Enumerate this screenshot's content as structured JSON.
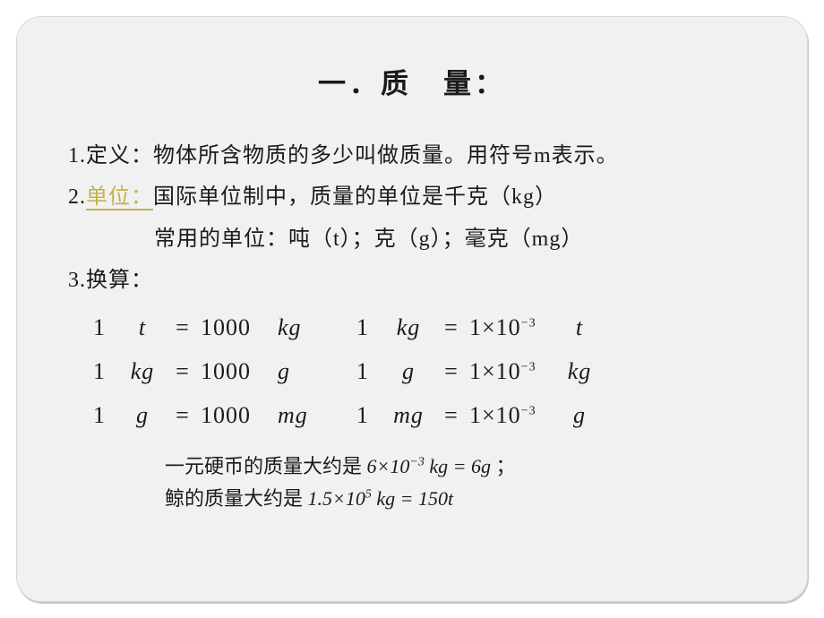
{
  "title": "一．质　量：",
  "items": {
    "i1": "1.定义：物体所含物质的多少叫做质量。用符号m表示。",
    "i2_num": "2.",
    "i2_hl": "单位：",
    "i2_rest": "国际单位制中，质量的单位是千克（kg）",
    "i2b": "常用的单位：吨（t）；克（g）；毫克（mg）",
    "i3": "3.换算："
  },
  "conv": {
    "rows": [
      {
        "lu1": "t",
        "lu2": "kg",
        "ru1": "kg",
        "ru2": "t"
      },
      {
        "lu1": "kg",
        "lu2": "g",
        "ru1": "g",
        "ru2": "kg"
      },
      {
        "lu1": "g",
        "lu2": "mg",
        "ru1": "mg",
        "ru2": "g"
      }
    ],
    "one": "1",
    "eq": "=",
    "thousand": "1000",
    "exp_prefix": "1×10",
    "exp_sup": "−3"
  },
  "examples": {
    "e1_text": "一元硬币的质量大约是 ",
    "e1_math": "6×10",
    "e1_sup": "−3",
    "e1_unit": " kg = 6g",
    "e1_tail": " ；",
    "e2_text": "鲸的质量大约是 ",
    "e2_math": "1.5×10",
    "e2_sup": "5",
    "e2_unit": " kg = 150t"
  },
  "style": {
    "bg": "#f1f1f2",
    "text": "#1a1a1a",
    "highlight": "#c2b24a",
    "underline": "#c2b24a",
    "font_body": "SimSun",
    "font_math": "Times New Roman",
    "title_fontsize": 31,
    "line_fontsize": 24,
    "conv_fontsize": 26,
    "example_fontsize": 22,
    "radius": 28
  }
}
